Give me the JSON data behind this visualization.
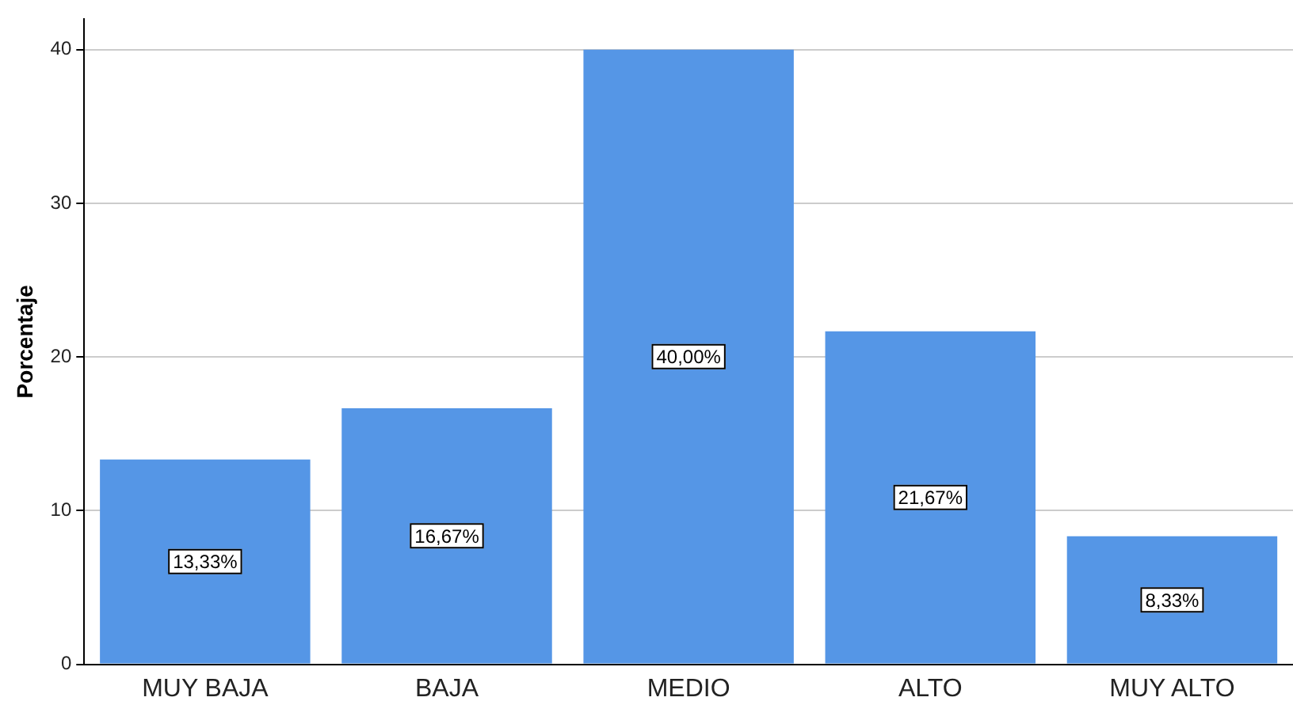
{
  "chart_data": {
    "type": "bar",
    "ylabel": "Porcentaje",
    "categories": [
      "MUY BAJA",
      "BAJA",
      "MEDIO",
      "ALTO",
      "MUY ALTO"
    ],
    "values": [
      13.33,
      16.67,
      40.0,
      21.67,
      8.33
    ],
    "value_labels": [
      "13,33%",
      "16,67%",
      "40,00%",
      "21,67%",
      "8,33%"
    ],
    "color": "#5596e6",
    "ylim": [
      0,
      42
    ],
    "yticks": [
      0,
      10,
      20,
      30,
      40
    ],
    "grid": "y",
    "legend": false
  }
}
